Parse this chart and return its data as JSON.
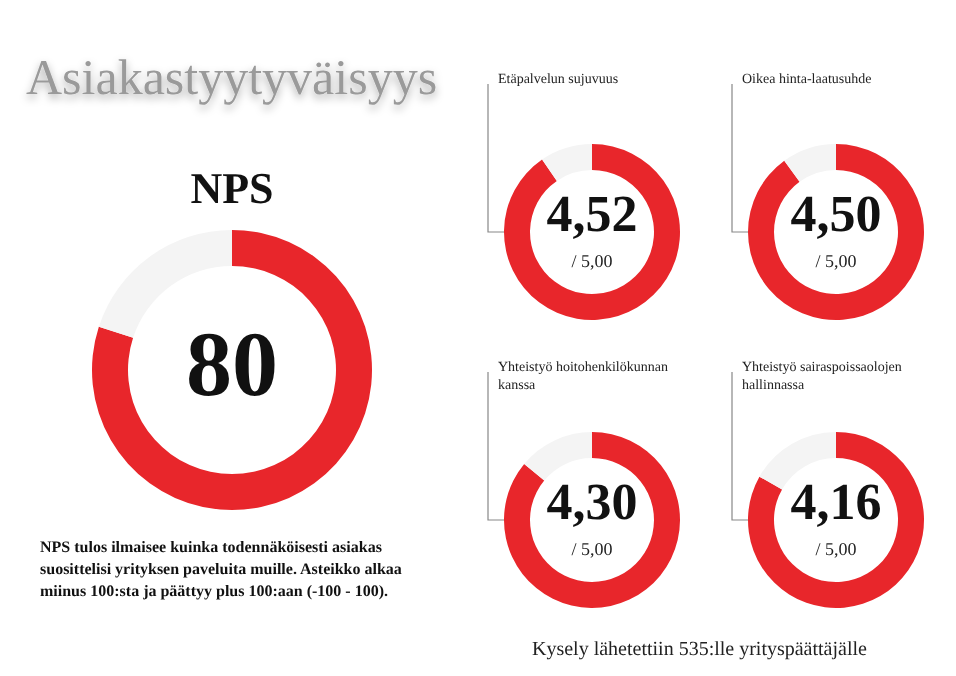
{
  "chart_data": [
    {
      "type": "donut",
      "title": "Asiakastyytyväisyys",
      "subtitle": "NPS",
      "categories": [
        null,
        null
      ],
      "values": [
        80,
        20
      ],
      "colors": [
        "#e8262b",
        "#f4f4f4"
      ],
      "value_labels": [
        "80",
        null
      ],
      "annotations": [
        "NPS tulos ilmaisee kuinka todennäköisesti asiakas suosittelisi yrityksen paveluita muille. Asteikko alkaa miinus 100:sta ja päättyy plus 100:aan (-100 - 100)."
      ]
    },
    {
      "type": "donut",
      "title": "Etäpalvelun sujuvuus",
      "categories": [
        null,
        null
      ],
      "values": [
        4.52,
        0.48
      ],
      "colors": [
        "#e8262b",
        "#f4f4f4"
      ],
      "value_labels": [
        "4,52",
        null
      ],
      "annotations": [
        "/ 5,00"
      ]
    },
    {
      "type": "donut",
      "title": "Oikea hinta-laatusuhde",
      "categories": [
        null,
        null
      ],
      "values": [
        4.5,
        0.5
      ],
      "colors": [
        "#e8262b",
        "#f4f4f4"
      ],
      "value_labels": [
        "4,50",
        null
      ],
      "annotations": [
        "/ 5,00"
      ]
    },
    {
      "type": "donut",
      "title": "Yhteistyö hoitohenkilökunnan kanssa",
      "categories": [
        null,
        null
      ],
      "values": [
        4.3,
        0.7
      ],
      "colors": [
        "#e8262b",
        "#f4f4f4"
      ],
      "value_labels": [
        "4,30",
        null
      ],
      "annotations": [
        "/ 5,00",
        "Kysely lähetettiin 535:lle yrityspäättäjälle"
      ]
    },
    {
      "type": "donut",
      "title": "Yhteistyö sairaspoissaolojen hallinnassa",
      "categories": [
        null,
        null
      ],
      "values": [
        4.16,
        0.84
      ],
      "colors": [
        "#e8262b",
        "#f4f4f4"
      ],
      "value_labels": [
        "4,16",
        null
      ],
      "annotations": [
        "/ 5,00"
      ]
    }
  ]
}
